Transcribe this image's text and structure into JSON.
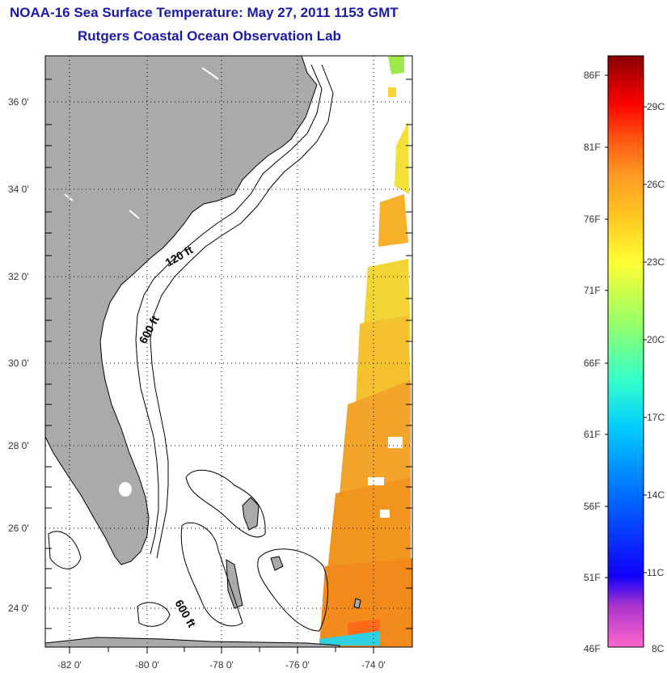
{
  "title": "NOAA-16 Sea Surface Temperature:  May 27, 2011 1153 GMT",
  "subtitle": "Rutgers Coastal Ocean Observation Lab",
  "map": {
    "lat_labels": [
      "36 0'",
      "34 0'",
      "32 0'",
      "30 0'",
      "28 0'",
      "26 0'",
      "24 0'"
    ],
    "lon_labels": [
      "-82 0'",
      "-80 0'",
      "-78 0'",
      "-76 0'",
      "-74 0'"
    ],
    "contour_labels": [
      "120 ft",
      "600 ft",
      "600 ft"
    ],
    "colors": {
      "land": "#aaaaaa",
      "sst_warm": "#f29a1e",
      "sst_mid": "#f6c12a",
      "sst_cool": "#f2e038",
      "coast": "#000000"
    }
  },
  "colorbar": {
    "fahrenheit": [
      "86F",
      "81F",
      "76F",
      "71F",
      "66F",
      "61F",
      "56F",
      "51F",
      "46F"
    ],
    "celsius": [
      "29C",
      "26C",
      "23C",
      "20C",
      "17C",
      "14C",
      "11C",
      "8C"
    ],
    "gradient": [
      "#ff66cc",
      "#aa33cc",
      "#1100ff",
      "#0066ff",
      "#00ccff",
      "#33ffcc",
      "#99ff66",
      "#ffff33",
      "#ffcc22",
      "#ff9922",
      "#ff5511",
      "#ff0000",
      "#cc0000",
      "#880000"
    ]
  }
}
